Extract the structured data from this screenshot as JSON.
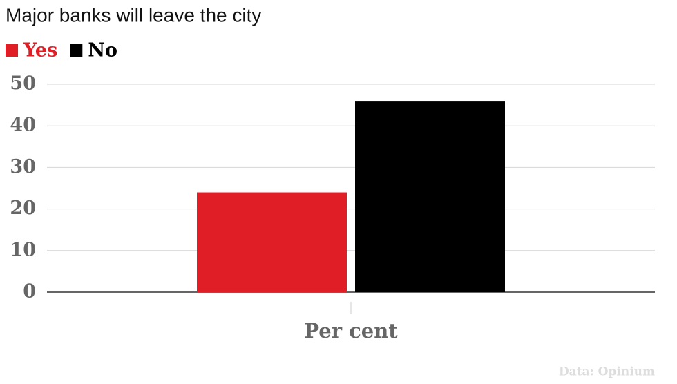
{
  "chart_data": {
    "type": "bar",
    "title": "Major banks will leave the city",
    "categories": [
      "Per cent"
    ],
    "series": [
      {
        "name": "Yes",
        "color": "#e01e26",
        "values": [
          24
        ]
      },
      {
        "name": "No",
        "color": "#000000",
        "values": [
          46
        ]
      }
    ],
    "ylim": [
      0,
      50
    ],
    "yticks": [
      0,
      10,
      20,
      30,
      40,
      50
    ],
    "grid": true,
    "legend": "top-left",
    "source": "Data: Opinium"
  }
}
